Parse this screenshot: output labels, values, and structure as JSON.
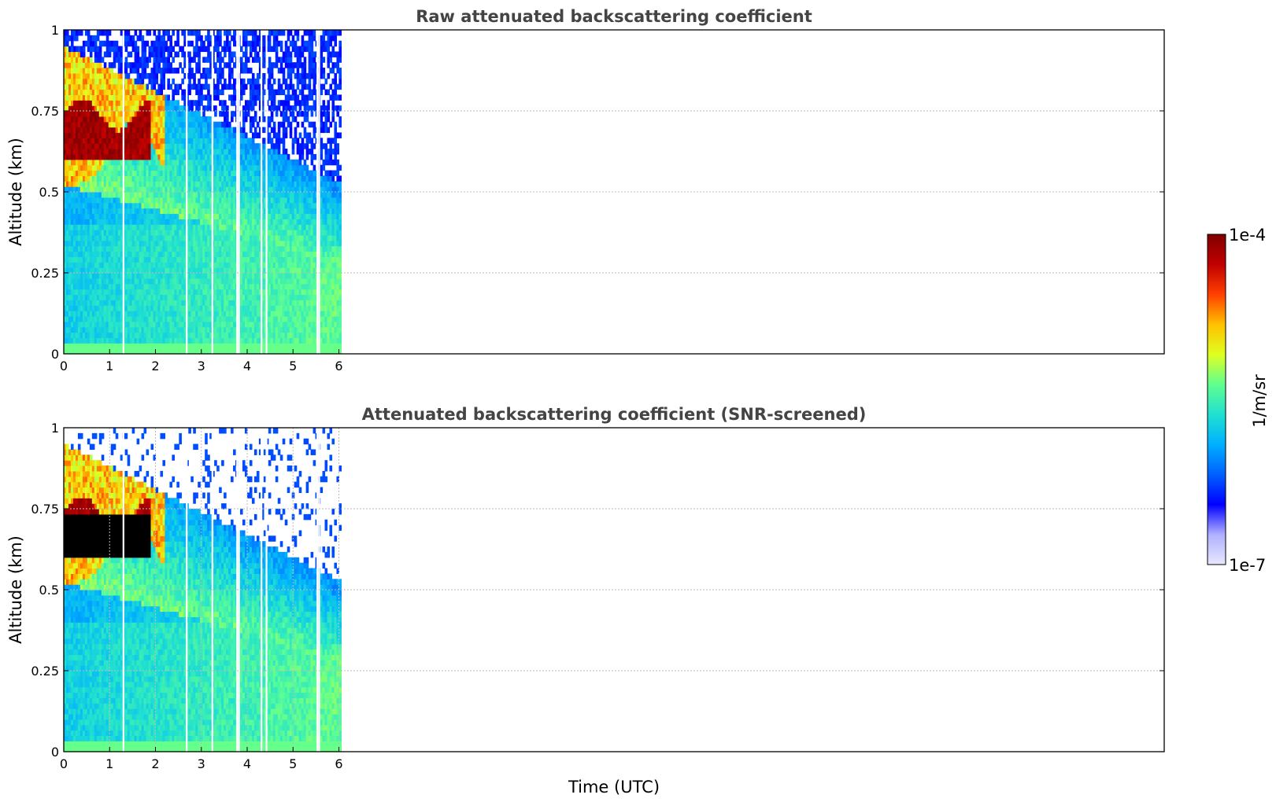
{
  "chart_data": [
    {
      "type": "heatmap",
      "title": "Raw attenuated backscattering coefficient",
      "xlabel": "",
      "ylabel": "Altitude (km)",
      "xlim": [
        0,
        24
      ],
      "ylim": [
        0,
        1
      ],
      "xticks": [
        "0",
        "1",
        "2",
        "3",
        "4",
        "5",
        "6"
      ],
      "yticks": [
        "0",
        "0.25",
        "0.5",
        "0.75",
        "1"
      ],
      "data_extent_hours": [
        0,
        6.05
      ],
      "gaps_hours": [
        1.3,
        2.68,
        3.24,
        3.78,
        3.82,
        4.31,
        4.42,
        5.53,
        5.57
      ],
      "grid": true,
      "screened": false
    },
    {
      "type": "heatmap",
      "title": "Attenuated backscattering coefficient (SNR-screened)",
      "xlabel": "Time (UTC)",
      "ylabel": "Altitude (km)",
      "xlim": [
        0,
        24
      ],
      "ylim": [
        0,
        1
      ],
      "xticks": [
        "0",
        "1",
        "2",
        "3",
        "4",
        "5",
        "6"
      ],
      "yticks": [
        "0",
        "0.25",
        "0.5",
        "0.75",
        "1"
      ],
      "data_extent_hours": [
        0,
        6.05
      ],
      "gaps_hours": [
        1.3,
        2.68,
        3.24,
        3.78,
        3.82,
        4.31,
        4.42,
        5.53,
        5.57
      ],
      "grid": true,
      "screened": true
    }
  ],
  "colorbar": {
    "label": "1/m/sr",
    "min_label": "1e-7",
    "max_label": "1e-4",
    "scale": "log",
    "colormap": [
      "#e8e8ff",
      "#b0b0ff",
      "#0000ff",
      "#0060ff",
      "#00b0ff",
      "#20e0d0",
      "#60ff90",
      "#e0ff20",
      "#ffc000",
      "#ff4000",
      "#c00000",
      "#800000"
    ]
  }
}
